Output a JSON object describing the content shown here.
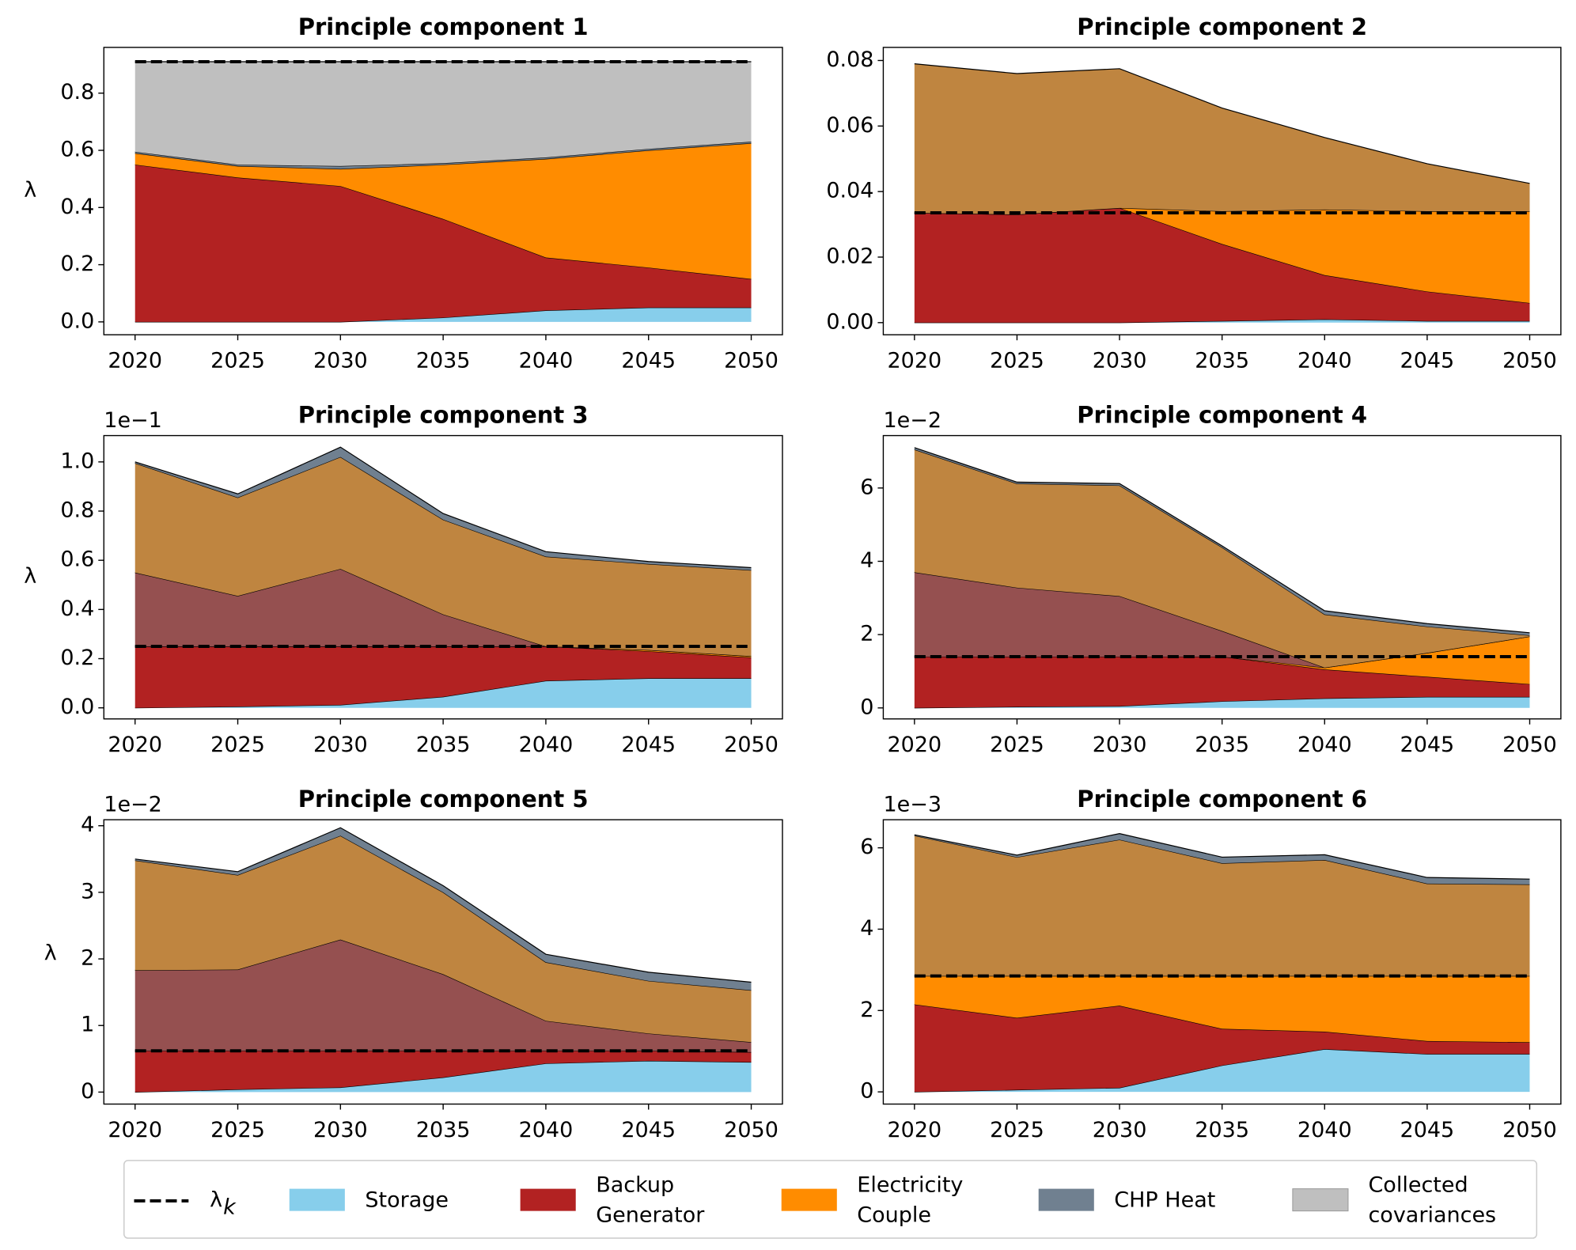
{
  "chart_data": [
    {
      "type": "area",
      "title": "Principle component 1",
      "ylabel": "λ",
      "x": [
        2020,
        2025,
        2030,
        2035,
        2040,
        2045,
        2050
      ],
      "xlim": [
        2018.48,
        2051.52
      ],
      "xticks": [
        2020,
        2025,
        2030,
        2035,
        2040,
        2045,
        2050
      ],
      "ylim": [
        -0.045,
        0.96
      ],
      "yticks": [
        {
          "value": 0,
          "label": "0.0"
        },
        0.2,
        0.4,
        0.6,
        0.8
      ],
      "lambda": 0.91,
      "series": [
        {
          "color": "#87ceeb",
          "values": [
            0,
            0,
            0,
            0.015,
            0.04,
            0.05,
            0.05
          ]
        },
        {
          "color": "#b22222",
          "values": [
            0.55,
            0.505,
            0.475,
            0.345,
            0.185,
            0.14,
            0.1
          ]
        },
        {
          "color": "#ff8c00",
          "values": [
            0.04,
            0.04,
            0.06,
            0.19,
            0.345,
            0.41,
            0.475
          ]
        },
        {
          "color": "#708090",
          "values": [
            0.005,
            0.005,
            0.01,
            0.005,
            0.005,
            0.005,
            0.005
          ]
        },
        {
          "color": "#bfbfbf",
          "values": [
            0.315,
            0.36,
            0.365,
            0.355,
            0.335,
            0.305,
            0.28
          ]
        }
      ]
    },
    {
      "type": "area",
      "title": "Principle component 2",
      "x": [
        2020,
        2025,
        2030,
        2035,
        2040,
        2045,
        2050
      ],
      "xlim": [
        2018.48,
        2051.52
      ],
      "xticks": [
        2020,
        2025,
        2030,
        2035,
        2040,
        2045,
        2050
      ],
      "ylim": [
        -0.0037,
        0.084
      ],
      "yticks": [
        {
          "value": 0,
          "label": "0.00"
        },
        {
          "value": 0.02,
          "label": "0.02"
        },
        {
          "value": 0.04,
          "label": "0.04"
        },
        {
          "value": 0.06,
          "label": "0.06"
        },
        {
          "value": 0.08,
          "label": "0.08"
        }
      ],
      "lambda": 0.0335,
      "series": [
        {
          "color": "#87ceeb",
          "values": [
            0,
            0,
            0,
            0.0005,
            0.001,
            0.0005,
            0.0005
          ]
        },
        {
          "color": "#b22222",
          "values": [
            0.0335,
            0.033,
            0.035,
            0.0235,
            0.0135,
            0.009,
            0.0055
          ]
        },
        {
          "color": "#ff8c00",
          "values": [
            0,
            0,
            0,
            0.01,
            0.02,
            0.0245,
            0.028
          ]
        },
        {
          "color": "#bf8540",
          "values": [
            0.0455,
            0.043,
            0.0425,
            0.0315,
            0.022,
            0.0145,
            0.0085
          ]
        }
      ]
    },
    {
      "type": "area",
      "title": "Principle component 3",
      "ylabel": "λ",
      "offset_label": "1e−1",
      "x": [
        2020,
        2025,
        2030,
        2035,
        2040,
        2045,
        2050
      ],
      "xlim": [
        2018.48,
        2051.52
      ],
      "xticks": [
        2020,
        2025,
        2030,
        2035,
        2040,
        2045,
        2050
      ],
      "ylim": [
        -0.045,
        1.107
      ],
      "yticks": [
        {
          "value": 0,
          "label": "0.0"
        },
        0.2,
        0.4,
        0.6,
        0.8,
        {
          "value": 1,
          "label": "1.0"
        }
      ],
      "lambda": 0.25,
      "series": [
        {
          "color": "#87ceeb",
          "values": [
            0,
            0.005,
            0.012,
            0.045,
            0.11,
            0.12,
            0.12
          ]
        },
        {
          "color": "#b22222",
          "values": [
            0.25,
            0.245,
            0.238,
            0.205,
            0.14,
            0.11,
            0.085
          ]
        },
        {
          "color": "#ff8c00",
          "values": [
            0,
            0,
            0,
            0,
            0,
            0.005,
            0.005
          ]
        },
        {
          "color": "#955050",
          "values": [
            0.3,
            0.205,
            0.315,
            0.13,
            0,
            0,
            0
          ]
        },
        {
          "color": "#bf8540",
          "values": [
            0.445,
            0.4,
            0.455,
            0.385,
            0.365,
            0.35,
            0.35
          ]
        },
        {
          "color": "#708090",
          "values": [
            0.005,
            0.015,
            0.04,
            0.025,
            0.02,
            0.01,
            0.01
          ]
        }
      ]
    },
    {
      "type": "area",
      "title": "Principle component 4",
      "offset_label": "1e−2",
      "x": [
        2020,
        2025,
        2030,
        2035,
        2040,
        2045,
        2050
      ],
      "xlim": [
        2018.48,
        2051.52
      ],
      "xticks": [
        2020,
        2025,
        2030,
        2035,
        2040,
        2045,
        2050
      ],
      "ylim": [
        -0.3,
        7.43
      ],
      "yticks": [
        0,
        2,
        4,
        6
      ],
      "lambda": 1.4,
      "series": [
        {
          "color": "#87ceeb",
          "values": [
            0,
            0.03,
            0.05,
            0.18,
            0.26,
            0.3,
            0.3
          ]
        },
        {
          "color": "#b22222",
          "values": [
            1.4,
            1.37,
            1.35,
            1.22,
            0.79,
            0.55,
            0.35
          ]
        },
        {
          "color": "#ff8c00",
          "values": [
            0,
            0,
            0,
            0,
            0.05,
            0.65,
            1.3
          ]
        },
        {
          "color": "#955050",
          "values": [
            2.3,
            1.88,
            1.65,
            0.7,
            0,
            0,
            0
          ]
        },
        {
          "color": "#bf8540",
          "values": [
            3.35,
            2.84,
            3.02,
            2.28,
            1.45,
            0.72,
            0.03
          ]
        },
        {
          "color": "#708090",
          "values": [
            0.05,
            0.04,
            0.05,
            0.04,
            0.1,
            0.08,
            0.07
          ]
        }
      ]
    },
    {
      "type": "area",
      "title": "Principle component 5",
      "ylabel": "λ",
      "offset_label": "1e−2",
      "x": [
        2020,
        2025,
        2030,
        2035,
        2040,
        2045,
        2050
      ],
      "xlim": [
        2018.48,
        2051.52
      ],
      "xticks": [
        2020,
        2025,
        2030,
        2035,
        2040,
        2045,
        2050
      ],
      "ylim": [
        -0.18,
        4.09
      ],
      "yticks": [
        0,
        1,
        2,
        3,
        4
      ],
      "lambda": 0.62,
      "series": [
        {
          "color": "#87ceeb",
          "values": [
            0,
            0.04,
            0.07,
            0.22,
            0.43,
            0.47,
            0.45
          ]
        },
        {
          "color": "#b22222",
          "values": [
            0.62,
            0.58,
            0.55,
            0.4,
            0.19,
            0.15,
            0.15
          ]
        },
        {
          "color": "#955050",
          "values": [
            1.21,
            1.22,
            1.67,
            1.15,
            0.45,
            0.26,
            0.15
          ]
        },
        {
          "color": "#bf8540",
          "values": [
            1.65,
            1.42,
            1.56,
            1.23,
            0.88,
            0.79,
            0.78
          ]
        },
        {
          "color": "#708090",
          "values": [
            0.02,
            0.05,
            0.12,
            0.1,
            0.12,
            0.13,
            0.12
          ]
        }
      ]
    },
    {
      "type": "area",
      "title": "Principle component 6",
      "offset_label": "1e−3",
      "x": [
        2020,
        2025,
        2030,
        2035,
        2040,
        2045,
        2050
      ],
      "xlim": [
        2018.48,
        2051.52
      ],
      "xticks": [
        2020,
        2025,
        2030,
        2035,
        2040,
        2045,
        2050
      ],
      "ylim": [
        -0.3,
        6.69
      ],
      "yticks": [
        0,
        2,
        4,
        6
      ],
      "lambda": 2.85,
      "series": [
        {
          "color": "#87ceeb",
          "values": [
            0,
            0.05,
            0.1,
            0.65,
            1.05,
            0.93,
            0.93
          ]
        },
        {
          "color": "#b22222",
          "values": [
            2.15,
            1.77,
            2.02,
            0.9,
            0.43,
            0.32,
            0.29
          ]
        },
        {
          "color": "#ff8c00",
          "values": [
            0.7,
            1.03,
            0.73,
            1.3,
            1.37,
            1.6,
            1.63
          ]
        },
        {
          "color": "#bf8540",
          "values": [
            3.45,
            2.92,
            3.35,
            2.77,
            2.85,
            2.27,
            2.25
          ]
        },
        {
          "color": "#708090",
          "values": [
            0.02,
            0.05,
            0.15,
            0.15,
            0.13,
            0.15,
            0.13
          ]
        }
      ]
    }
  ],
  "legend": {
    "items": [
      {
        "label": [
          "λ"
        ],
        "subscript": "k",
        "color": "#000000",
        "style": "dashed"
      },
      {
        "label": [
          "Storage"
        ],
        "color": "#87ceeb"
      },
      {
        "label": [
          "Backup",
          "Generator"
        ],
        "color": "#b22222"
      },
      {
        "label": [
          "Electricity",
          "Couple"
        ],
        "color": "#ff8c00"
      },
      {
        "label": [
          "CHP Heat"
        ],
        "color": "#708090"
      },
      {
        "label": [
          "Collected",
          "covariances"
        ],
        "color": "#bfbfbf"
      }
    ]
  }
}
